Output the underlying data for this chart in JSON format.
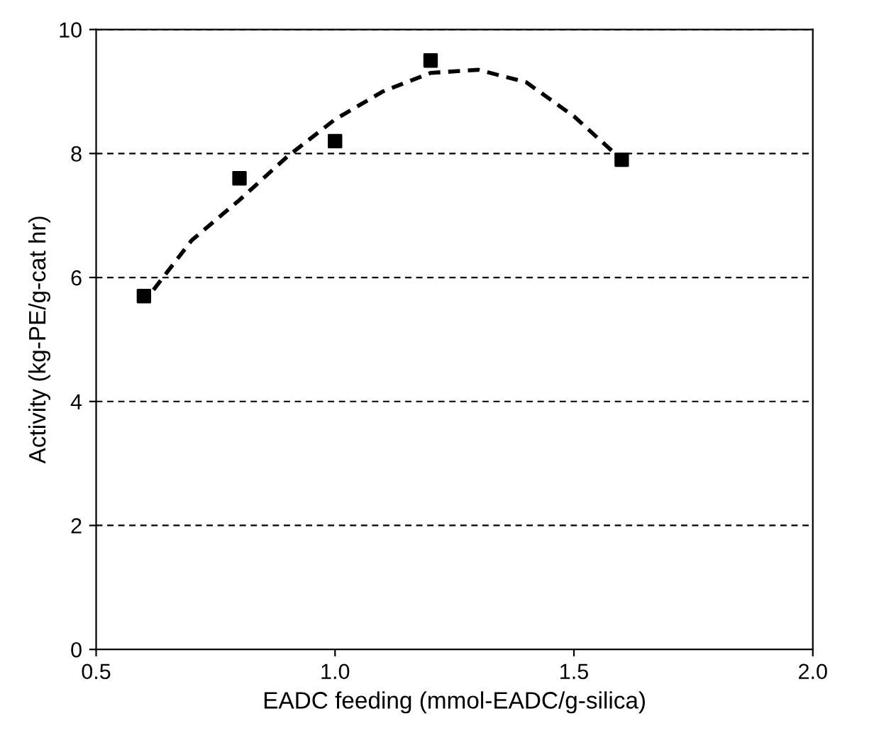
{
  "chart_data": {
    "type": "scatter",
    "xlabel": "EADC feeding (mmol-EADC/g-silica)",
    "ylabel": "Activity (kg-PE/g-cat hr)",
    "series": [
      {
        "color": "#000000",
        "marker": "square",
        "x": [
          0.6,
          0.8,
          1.0,
          1.2,
          1.6
        ],
        "values": [
          5.7,
          7.6,
          8.2,
          9.5,
          7.9
        ]
      },
      {
        "type": "line",
        "color": "#000000",
        "marker": "none",
        "line_style": "dashed",
        "x": [
          0.62,
          0.7,
          0.8,
          0.9,
          1.0,
          1.1,
          1.2,
          1.3,
          1.4,
          1.5,
          1.6
        ],
        "values": [
          5.8,
          6.6,
          7.25,
          7.95,
          8.55,
          9.0,
          9.3,
          9.35,
          9.15,
          8.6,
          7.9
        ]
      }
    ],
    "xlim": [
      0.5,
      2.0
    ],
    "xticks": [
      0.5,
      {
        "value": 1.0,
        "label": "1.0"
      },
      1.5,
      {
        "value": 2.0,
        "label": "2.0"
      }
    ],
    "ylim": [
      0,
      10
    ],
    "yticks": [
      0,
      2,
      4,
      6,
      8,
      10
    ],
    "grid": "y",
    "legend": false
  }
}
